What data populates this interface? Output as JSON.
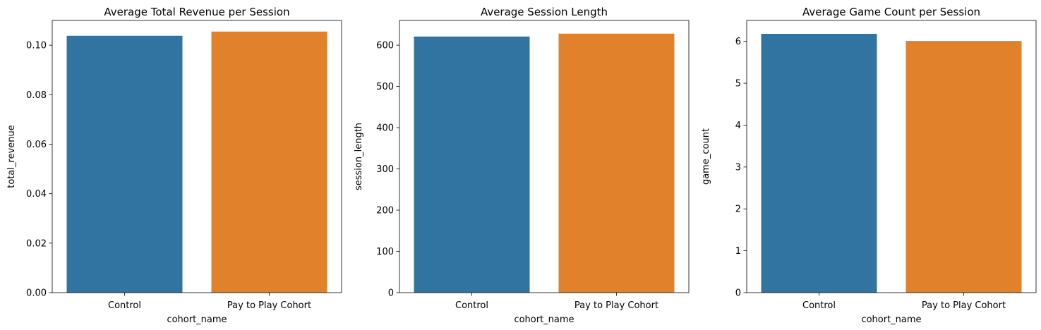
{
  "colors": {
    "control": "#3274a1",
    "cohort": "#e1812c",
    "axis": "#000000",
    "background": "#ffffff"
  },
  "chart_data": [
    {
      "type": "bar",
      "title": "Average Total Revenue per Session",
      "xlabel": "cohort_name",
      "ylabel": "total_revenue",
      "categories": [
        "Control",
        "Pay to Play Cohort"
      ],
      "values": [
        0.1038,
        0.1055
      ],
      "ylim": [
        0,
        0.11
      ],
      "yticks": [
        0.0,
        0.02,
        0.04,
        0.06,
        0.08,
        0.1
      ],
      "ytick_labels": [
        "0.00",
        "0.02",
        "0.04",
        "0.06",
        "0.08",
        "0.10"
      ],
      "grid": false,
      "legend": "none"
    },
    {
      "type": "bar",
      "title": "Average Session Length",
      "xlabel": "cohort_name",
      "ylabel": "session_length",
      "categories": [
        "Control",
        "Pay to Play Cohort"
      ],
      "values": [
        621,
        628
      ],
      "ylim": [
        0,
        660
      ],
      "yticks": [
        0,
        100,
        200,
        300,
        400,
        500,
        600
      ],
      "ytick_labels": [
        "0",
        "100",
        "200",
        "300",
        "400",
        "500",
        "600"
      ],
      "grid": false,
      "legend": "none"
    },
    {
      "type": "bar",
      "title": "Average Game Count per Session",
      "xlabel": "cohort_name",
      "ylabel": "game_count",
      "categories": [
        "Control",
        "Pay to Play Cohort"
      ],
      "values": [
        6.18,
        6.01
      ],
      "ylim": [
        0,
        6.5
      ],
      "yticks": [
        0,
        1,
        2,
        3,
        4,
        5,
        6
      ],
      "ytick_labels": [
        "0",
        "1",
        "2",
        "3",
        "4",
        "5",
        "6"
      ],
      "grid": false,
      "legend": "none"
    }
  ]
}
